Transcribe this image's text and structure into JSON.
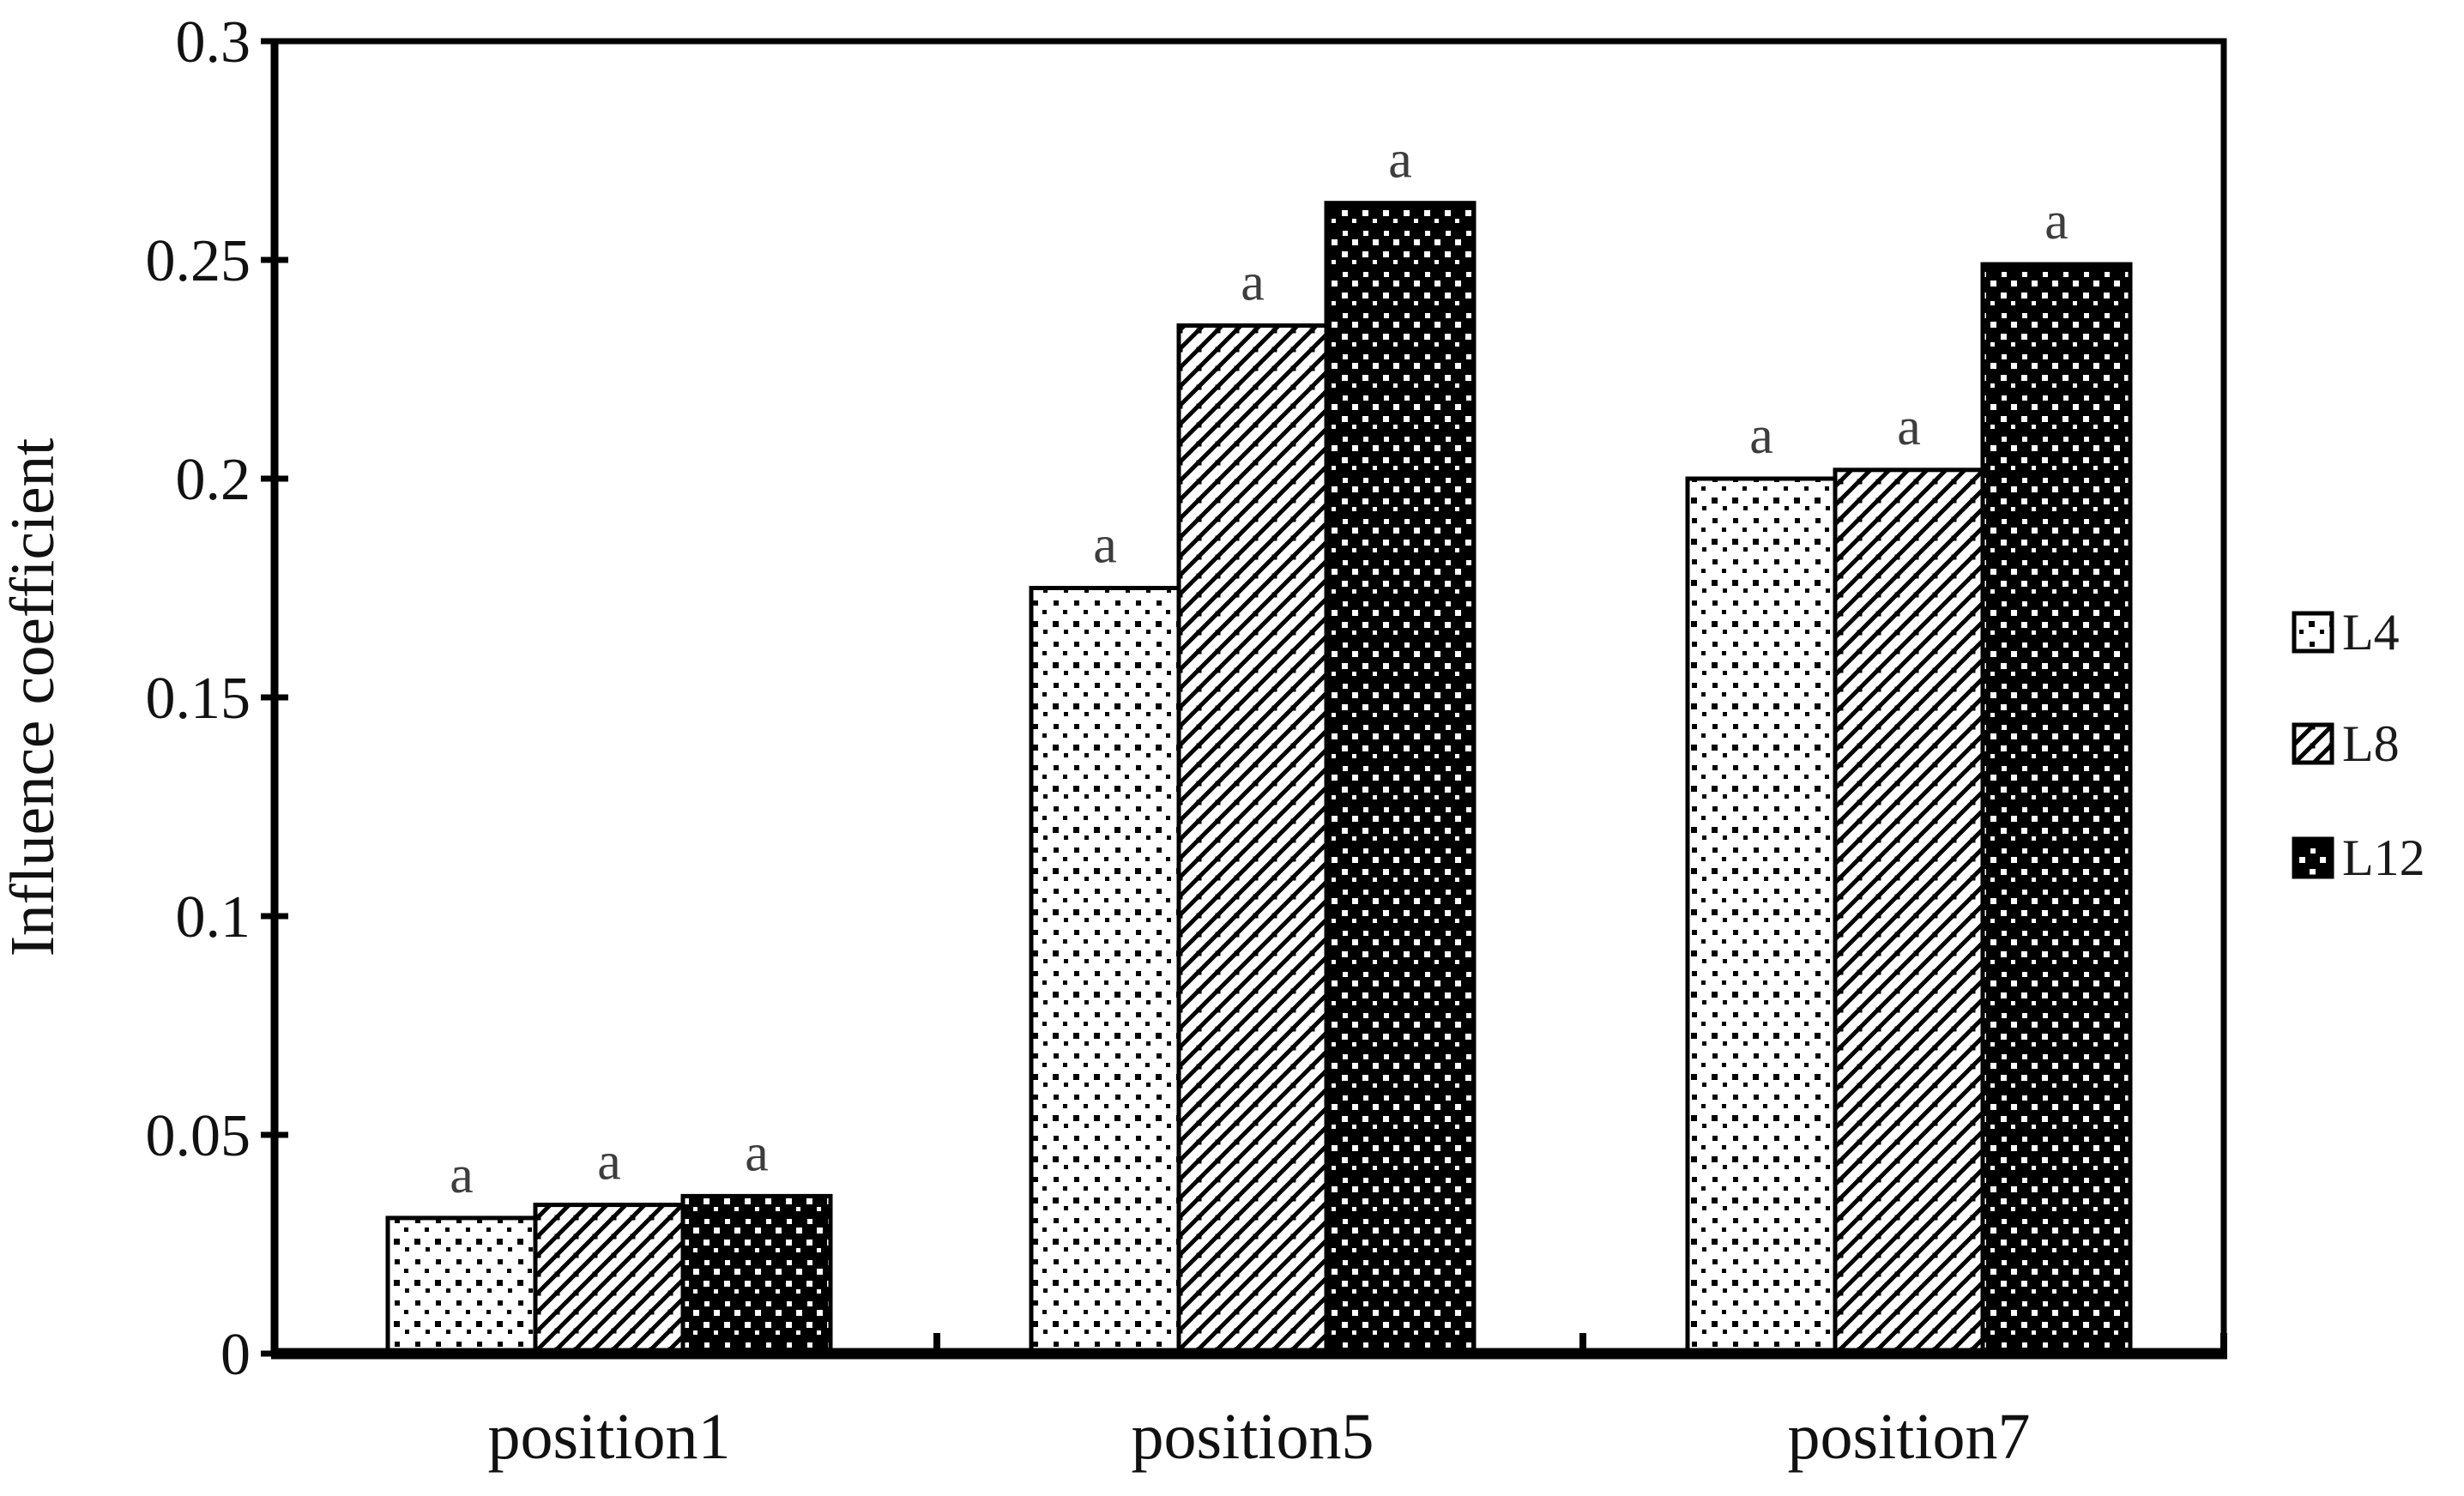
{
  "chart_data": {
    "type": "bar",
    "title": "",
    "ylabel": "Influence coefficient",
    "xlabel": "",
    "categories": [
      "position1",
      "position5",
      "position7"
    ],
    "series": [
      {
        "name": "L4",
        "pattern": "black-dots-on-white",
        "values": [
          0.031,
          0.175,
          0.2
        ],
        "bar_labels": [
          "a",
          "a",
          "a"
        ]
      },
      {
        "name": "L8",
        "pattern": "diagonal-hatch-with-dots",
        "values": [
          0.034,
          0.235,
          0.202
        ],
        "bar_labels": [
          "a",
          "a",
          "a"
        ]
      },
      {
        "name": "L12",
        "pattern": "white-dots-on-black",
        "values": [
          0.036,
          0.263,
          0.249
        ],
        "bar_labels": [
          "a",
          "a",
          "a"
        ]
      }
    ],
    "ylim": [
      0,
      0.3
    ],
    "yticks": [
      0,
      0.05,
      0.1,
      0.15,
      0.2,
      0.25,
      0.3
    ],
    "ytick_labels": [
      "0",
      "0.05",
      "0.1",
      "0.15",
      "0.2",
      "0.25",
      "0.3"
    ],
    "grid": false,
    "frame": true,
    "legend_position": "right-middle"
  },
  "legend": {
    "items": [
      {
        "label": "L4",
        "swatch": "black-dots-on-white"
      },
      {
        "label": "L8",
        "swatch": "diagonal-hatch-with-dots"
      },
      {
        "label": "L12",
        "swatch": "white-dots-on-black"
      }
    ]
  },
  "colors": {
    "foreground": "#000000",
    "background": "#ffffff",
    "annotation": "#3d3d3d",
    "tick_text": "#111111",
    "legend_text": "#1a1a1a"
  }
}
